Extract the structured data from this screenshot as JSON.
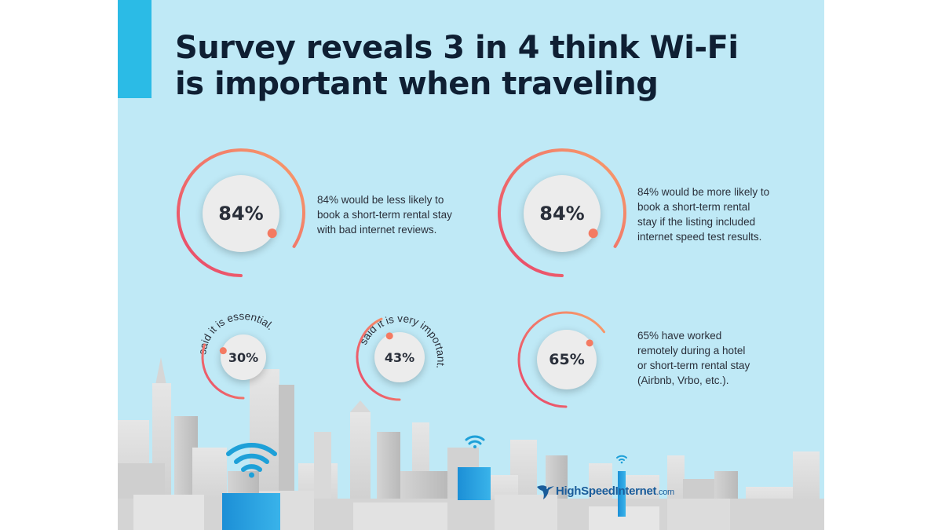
{
  "title": {
    "line1": "Survey reveals 3 in 4 think Wi-Fi",
    "line2": "is important when traveling"
  },
  "stats": [
    {
      "value": "84%",
      "fraction": 0.84,
      "description": [
        "84% would be less likely to",
        "book a short-term rental stay",
        "with bad internet reviews."
      ]
    },
    {
      "value": "84%",
      "fraction": 0.84,
      "description": [
        "84% would be more likely to",
        "book a short-term rental",
        "stay if the listing included",
        "internet speed test results."
      ]
    },
    {
      "value": "30%",
      "fraction": 0.3,
      "curved_label": "said it is essential."
    },
    {
      "value": "43%",
      "fraction": 0.43,
      "curved_label": "said it is very important."
    },
    {
      "value": "65%",
      "fraction": 0.65,
      "description": [
        "65% have worked",
        "remotely during a hotel",
        "or short-term rental stay",
        "(Airbnb, Vrbo, etc.)."
      ]
    }
  ],
  "logo": {
    "name": "HighSpeedInternet",
    "suffix": ".com"
  },
  "colors": {
    "background": "#bfe9f6",
    "accent": "#2bbbe6",
    "title": "#0f1f33",
    "ring_start": "#e8456b",
    "ring_end": "#f8a06a",
    "wifi": "#1ea0d8"
  }
}
